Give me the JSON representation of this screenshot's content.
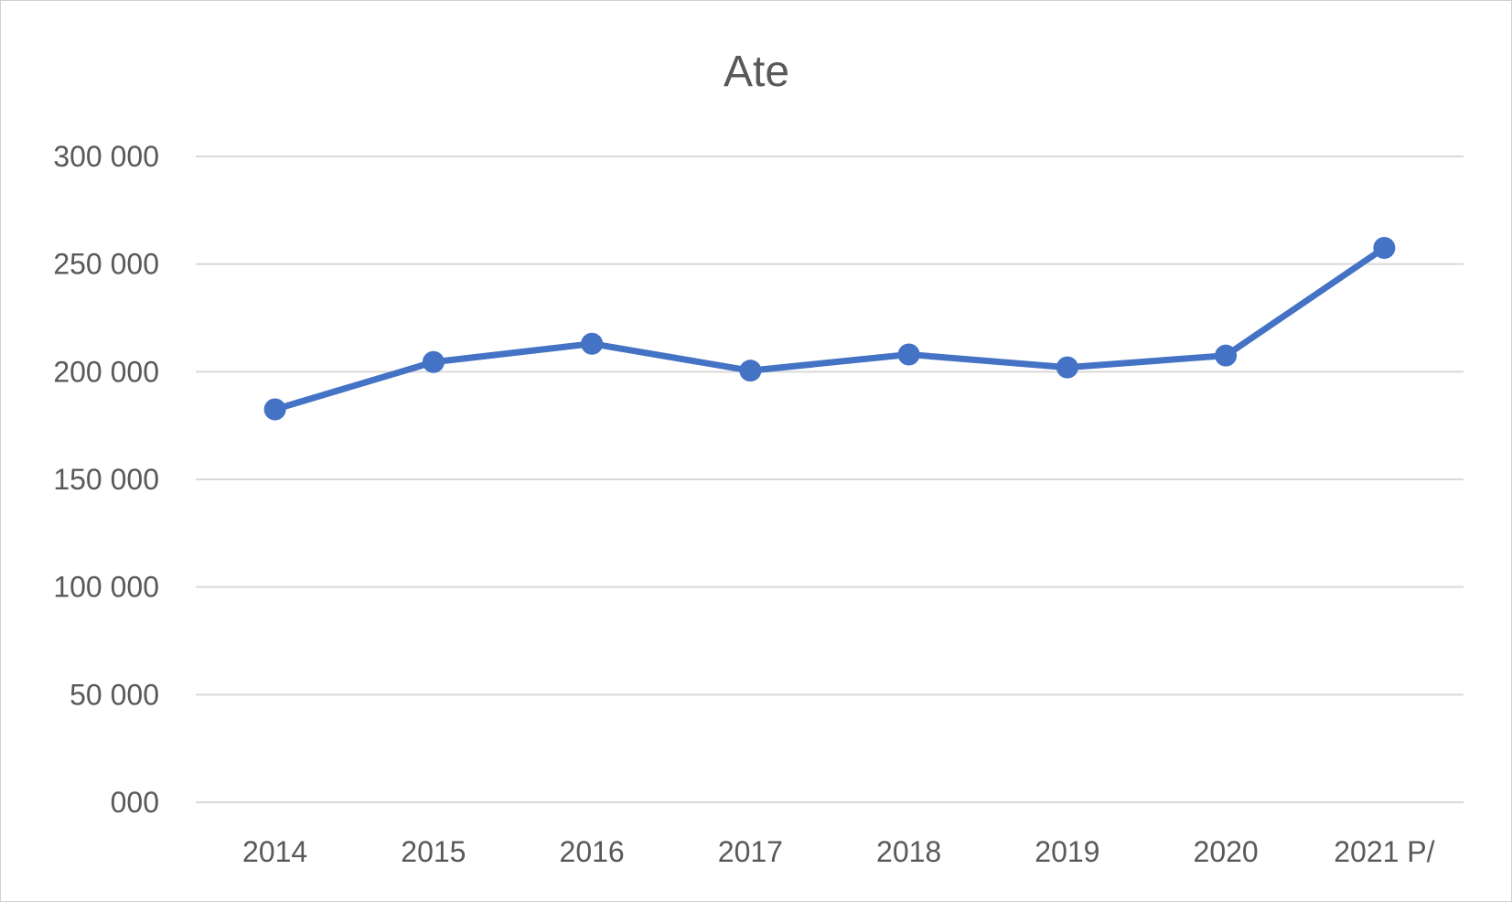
{
  "chart_data": {
    "type": "line",
    "title": "Ate",
    "xlabel": "",
    "ylabel": "",
    "categories": [
      "2014",
      "2015",
      "2016",
      "2017",
      "2018",
      "2019",
      "2020",
      "2021 P/"
    ],
    "series": [
      {
        "values": [
          182500,
          204500,
          213000,
          200500,
          208000,
          202000,
          207500,
          257500
        ]
      }
    ],
    "ylim": [
      0,
      300000
    ],
    "yticks": [
      0,
      50000,
      100000,
      150000,
      200000,
      250000,
      300000
    ],
    "ytick_labels": [
      "000",
      "50 000",
      "100 000",
      "150 000",
      "200 000",
      "250 000",
      "300 000"
    ],
    "grid": true,
    "legend": "none",
    "colors": {
      "series": "#4472c4",
      "grid": "#d9d9d9",
      "text": "#595959"
    }
  }
}
